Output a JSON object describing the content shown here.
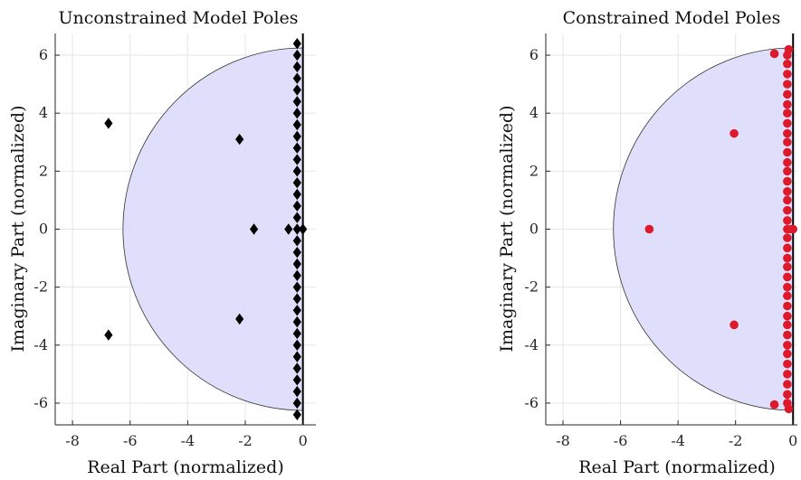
{
  "chart_data": [
    {
      "type": "scatter",
      "title": "Unconstrained Model Poles",
      "xlabel": "Real Part (normalized)",
      "ylabel": "Imaginary Part (normalized)",
      "xlim": [
        -8.6,
        0.45
      ],
      "ylim": [
        -6.75,
        6.75
      ],
      "xticks": [
        -8,
        -6,
        -4,
        -2,
        0
      ],
      "yticks": [
        -6,
        -4,
        -2,
        0,
        2,
        4,
        6
      ],
      "grid": true,
      "stability_region": {
        "shape": "half-disk",
        "radius": 6.25,
        "color": "#dcdcfb"
      },
      "marker": "diamond",
      "marker_color": "#000000",
      "points": [
        {
          "x": -6.75,
          "y": 3.65
        },
        {
          "x": -6.75,
          "y": -3.65
        },
        {
          "x": -2.2,
          "y": 3.1
        },
        {
          "x": -2.2,
          "y": -3.1
        },
        {
          "x": -1.7,
          "y": 0
        },
        {
          "x": -0.5,
          "y": 0
        },
        {
          "x": -0.2,
          "y": 0
        },
        {
          "x": 0.0,
          "y": 0
        },
        {
          "x": -0.2,
          "y": 6.4
        },
        {
          "x": -0.2,
          "y": -6.4
        },
        {
          "x": -0.2,
          "y": 6.0
        },
        {
          "x": -0.2,
          "y": 5.6
        },
        {
          "x": -0.2,
          "y": 5.2
        },
        {
          "x": -0.2,
          "y": 4.8
        },
        {
          "x": -0.2,
          "y": 4.4
        },
        {
          "x": -0.2,
          "y": 4.0
        },
        {
          "x": -0.2,
          "y": 3.6
        },
        {
          "x": -0.2,
          "y": 3.2
        },
        {
          "x": -0.2,
          "y": 2.8
        },
        {
          "x": -0.2,
          "y": 2.4
        },
        {
          "x": -0.2,
          "y": 2.0
        },
        {
          "x": -0.2,
          "y": 1.6
        },
        {
          "x": -0.2,
          "y": 1.2
        },
        {
          "x": -0.2,
          "y": 0.8
        },
        {
          "x": -0.2,
          "y": 0.4
        },
        {
          "x": -0.2,
          "y": -0.4
        },
        {
          "x": -0.2,
          "y": -0.8
        },
        {
          "x": -0.2,
          "y": -1.2
        },
        {
          "x": -0.2,
          "y": -1.6
        },
        {
          "x": -0.2,
          "y": -2.0
        },
        {
          "x": -0.2,
          "y": -2.4
        },
        {
          "x": -0.2,
          "y": -2.8
        },
        {
          "x": -0.2,
          "y": -3.2
        },
        {
          "x": -0.2,
          "y": -3.6
        },
        {
          "x": -0.2,
          "y": -4.0
        },
        {
          "x": -0.2,
          "y": -4.4
        },
        {
          "x": -0.2,
          "y": -4.8
        },
        {
          "x": -0.2,
          "y": -5.2
        },
        {
          "x": -0.2,
          "y": -5.6
        },
        {
          "x": -0.2,
          "y": -6.0
        }
      ]
    },
    {
      "type": "scatter",
      "title": "Constrained Model Poles",
      "xlabel": "Real Part (normalized)",
      "ylabel": "Imaginary Part (normalized)",
      "xlim": [
        -8.6,
        0.15
      ],
      "ylim": [
        -6.75,
        6.75
      ],
      "xticks": [
        -8,
        -6,
        -4,
        -2,
        0
      ],
      "yticks": [
        -6,
        -4,
        -2,
        0,
        2,
        4,
        6
      ],
      "grid": true,
      "stability_region": {
        "shape": "half-disk",
        "radius": 6.25,
        "color": "#dcdcfb"
      },
      "marker": "circle",
      "marker_color": "#dd1a2b",
      "points": [
        {
          "x": -5.0,
          "y": 0
        },
        {
          "x": -2.05,
          "y": 3.3
        },
        {
          "x": -2.05,
          "y": -3.3
        },
        {
          "x": -0.65,
          "y": 6.05
        },
        {
          "x": -0.65,
          "y": -6.05
        },
        {
          "x": -0.2,
          "y": 0
        },
        {
          "x": -0.05,
          "y": 0
        },
        {
          "x": 0.0,
          "y": 0
        },
        {
          "x": -0.15,
          "y": 6.2
        },
        {
          "x": -0.15,
          "y": -6.2
        },
        {
          "x": -0.2,
          "y": 6.0
        },
        {
          "x": -0.2,
          "y": 5.7
        },
        {
          "x": -0.2,
          "y": 5.35
        },
        {
          "x": -0.2,
          "y": 5.0
        },
        {
          "x": -0.2,
          "y": 4.65
        },
        {
          "x": -0.2,
          "y": 4.3
        },
        {
          "x": -0.2,
          "y": 4.0
        },
        {
          "x": -0.2,
          "y": 3.65
        },
        {
          "x": -0.2,
          "y": 3.3
        },
        {
          "x": -0.2,
          "y": 3.0
        },
        {
          "x": -0.2,
          "y": 2.65
        },
        {
          "x": -0.2,
          "y": 2.3
        },
        {
          "x": -0.2,
          "y": 2.0
        },
        {
          "x": -0.2,
          "y": 1.65
        },
        {
          "x": -0.2,
          "y": 1.3
        },
        {
          "x": -0.2,
          "y": 1.0
        },
        {
          "x": -0.2,
          "y": 0.65
        },
        {
          "x": -0.2,
          "y": 0.3
        },
        {
          "x": -0.2,
          "y": -0.3
        },
        {
          "x": -0.2,
          "y": -0.65
        },
        {
          "x": -0.2,
          "y": -1.0
        },
        {
          "x": -0.2,
          "y": -1.3
        },
        {
          "x": -0.2,
          "y": -1.65
        },
        {
          "x": -0.2,
          "y": -2.0
        },
        {
          "x": -0.2,
          "y": -2.3
        },
        {
          "x": -0.2,
          "y": -2.65
        },
        {
          "x": -0.2,
          "y": -3.0
        },
        {
          "x": -0.2,
          "y": -3.3
        },
        {
          "x": -0.2,
          "y": -3.65
        },
        {
          "x": -0.2,
          "y": -4.0
        },
        {
          "x": -0.2,
          "y": -4.3
        },
        {
          "x": -0.2,
          "y": -4.65
        },
        {
          "x": -0.2,
          "y": -5.0
        },
        {
          "x": -0.2,
          "y": -5.35
        },
        {
          "x": -0.2,
          "y": -5.7
        },
        {
          "x": -0.2,
          "y": -6.0
        }
      ]
    }
  ]
}
